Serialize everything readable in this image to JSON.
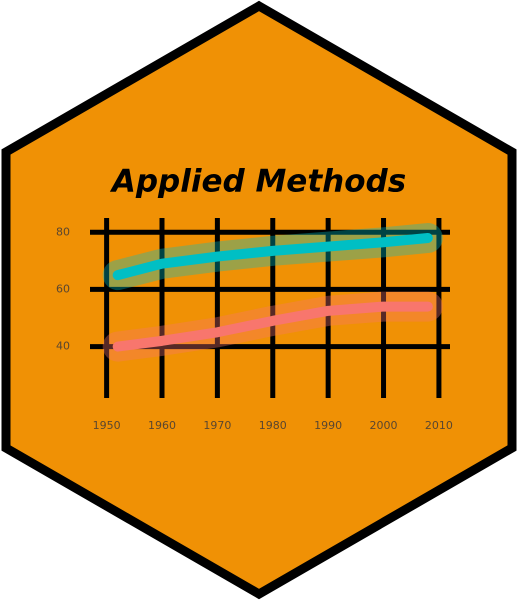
{
  "chart_data": {
    "type": "line",
    "title": "Applied Methods",
    "x": [
      1952,
      1960,
      1970,
      1980,
      1990,
      2000,
      2008
    ],
    "series": [
      {
        "color": "#00bfc4",
        "values": [
          65,
          69,
          71.5,
          73.5,
          75,
          76.5,
          78
        ]
      },
      {
        "color": "#f8766d",
        "values": [
          40,
          42,
          45,
          49,
          52.5,
          54,
          54
        ]
      }
    ],
    "xlim": [
      1947,
      2012
    ],
    "ylim": [
      22,
      85
    ],
    "xticks": [
      1950,
      1960,
      1970,
      1980,
      1990,
      2000,
      2010
    ],
    "yticks": [
      40,
      60,
      80
    ],
    "grid": true
  }
}
